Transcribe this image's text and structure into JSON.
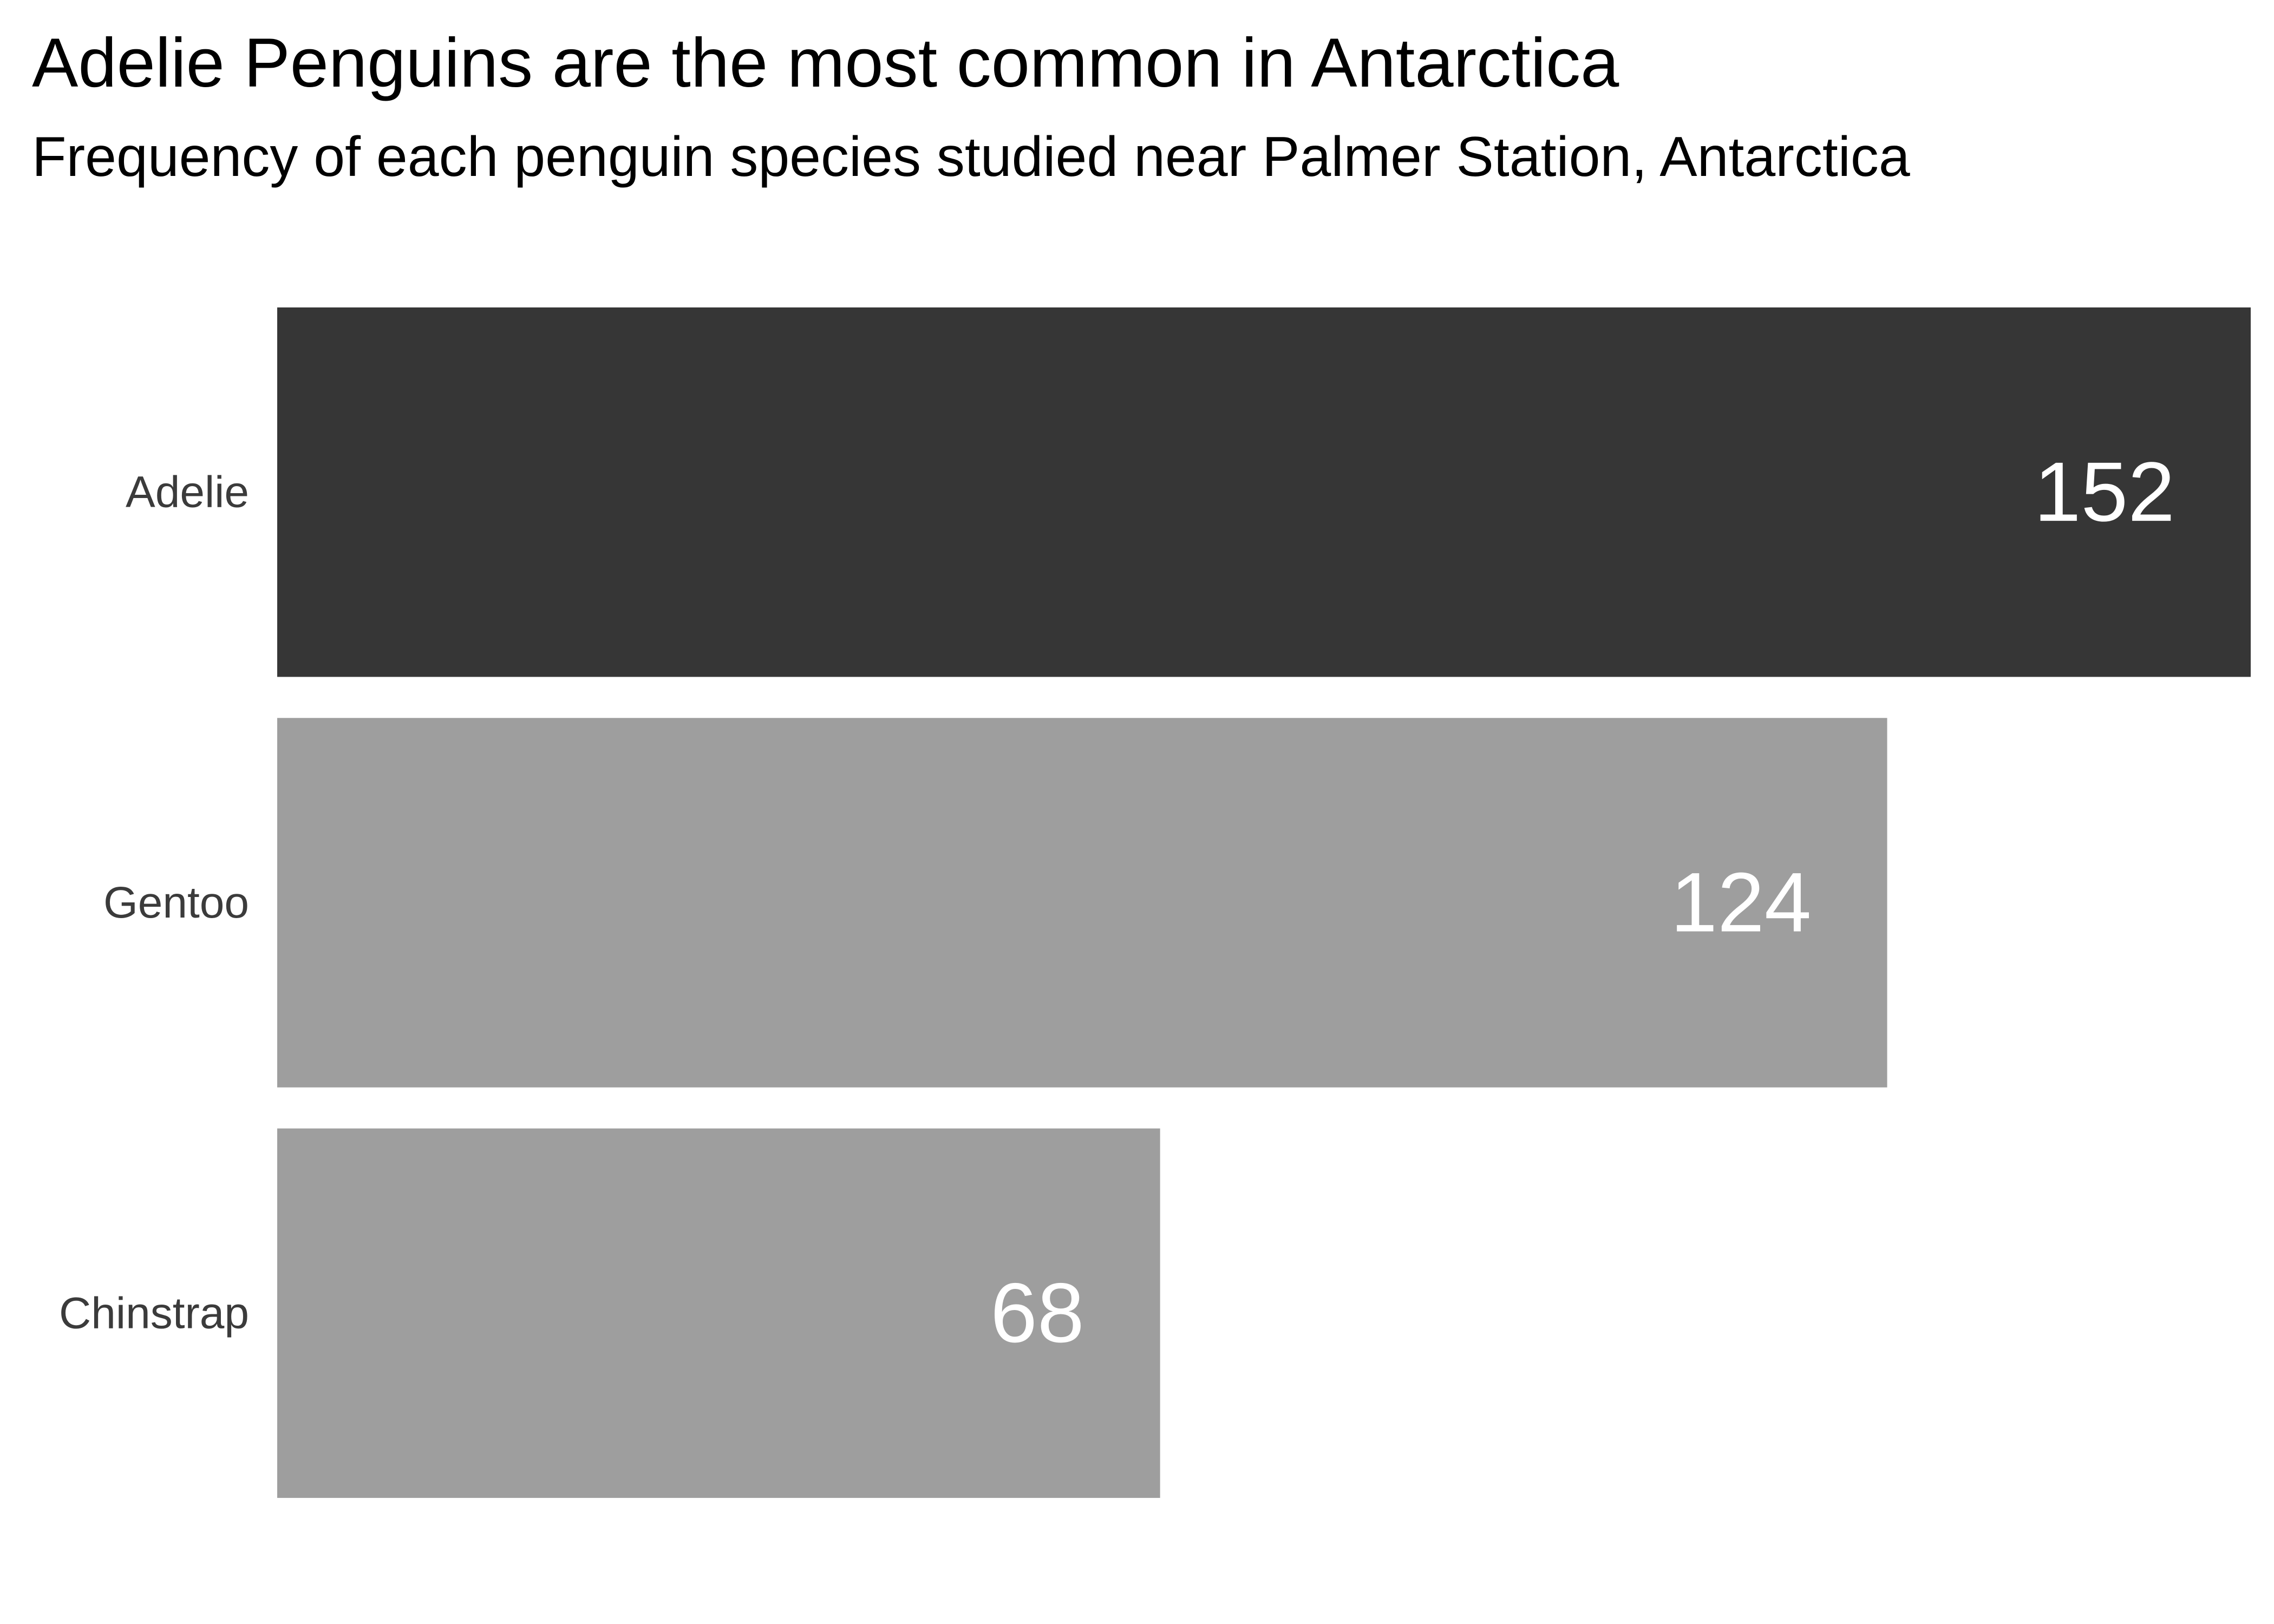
{
  "chart_data": {
    "type": "bar",
    "orientation": "horizontal",
    "title": "Adelie Penguins are the most common in Antarctica",
    "subtitle": "Frequency of each penguin species studied near Palmer Station, Antarctica",
    "xlabel": "",
    "ylabel": "",
    "categories": [
      "Adelie",
      "Gentoo",
      "Chinstrap"
    ],
    "values": [
      152,
      124,
      68
    ],
    "colors": [
      "#363636",
      "#9e9e9e",
      "#9e9e9e"
    ],
    "xlim": [
      0,
      152
    ],
    "grid": false,
    "legend": "none",
    "label_color": "#ffffff"
  }
}
